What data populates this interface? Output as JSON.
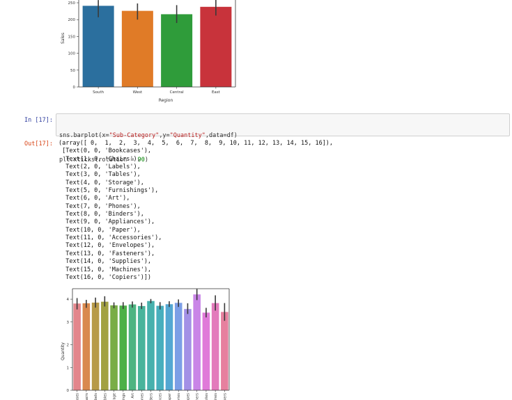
{
  "colors": {
    "prompt_in": "#303f9f",
    "prompt_out": "#d84315",
    "input_bg": "#f7f7f7",
    "string_token": "#ba2121",
    "number_token": "#008000"
  },
  "cells": {
    "cell17": {
      "in_prompt": "In [17]:",
      "code": {
        "line1_a": "sns.barplot(x=",
        "line1_s1": "\"Sub-Category\"",
        "line1_b": ",y=",
        "line1_s2": "\"Quantity\"",
        "line1_c": ",data=df)",
        "line2_a": "plt.xticks(rotation = ",
        "line2_n": "90",
        "line2_b": ")"
      },
      "out_prompt": "Out[17]:",
      "output_lines": [
        "(array([ 0,  1,  2,  3,  4,  5,  6,  7,  8,  9, 10, 11, 12, 13, 14, 15, 16]),",
        " [Text(0, 0, 'Bookcases'),",
        "  Text(1, 0, 'Chairs'),",
        "  Text(2, 0, 'Labels'),",
        "  Text(3, 0, 'Tables'),",
        "  Text(4, 0, 'Storage'),",
        "  Text(5, 0, 'Furnishings'),",
        "  Text(6, 0, 'Art'),",
        "  Text(7, 0, 'Phones'),",
        "  Text(8, 0, 'Binders'),",
        "  Text(9, 0, 'Appliances'),",
        "  Text(10, 0, 'Paper'),",
        "  Text(11, 0, 'Accessories'),",
        "  Text(12, 0, 'Envelopes'),",
        "  Text(13, 0, 'Fasteners'),",
        "  Text(14, 0, 'Supplies'),",
        "  Text(15, 0, 'Machines'),",
        "  Text(16, 0, 'Copiers')])"
      ]
    }
  },
  "chart_data": [
    {
      "type": "bar",
      "xlabel": "Region",
      "ylabel": "Sales",
      "ylim": [
        0,
        250
      ],
      "yticks": [
        0,
        50,
        100,
        150,
        200,
        250
      ],
      "categories": [
        "South",
        "West",
        "Central",
        "East"
      ],
      "values": [
        241,
        226,
        216,
        238
      ],
      "error_low": [
        207,
        200,
        190,
        212
      ],
      "error_high": [
        258,
        248,
        243,
        262
      ],
      "colors": [
        "#2b6f9e",
        "#e07b27",
        "#2f9c3a",
        "#c8333b"
      ],
      "grid": false
    },
    {
      "type": "bar",
      "xlabel": "",
      "ylabel": "Quantity",
      "ylim": [
        0,
        4.4
      ],
      "yticks": [
        0,
        1,
        2,
        3,
        4
      ],
      "categories": [
        "Bookcases",
        "Chairs",
        "Labels",
        "Tables",
        "Storage",
        "Furnishings",
        "Art",
        "Phones",
        "Binders",
        "Appliances",
        "Paper",
        "Accessories",
        "Envelopes",
        "Fasteners",
        "Supplies",
        "Machines",
        "Copiers"
      ],
      "values": [
        3.81,
        3.82,
        3.85,
        3.89,
        3.73,
        3.72,
        3.77,
        3.7,
        3.92,
        3.71,
        3.78,
        3.84,
        3.57,
        4.21,
        3.41,
        3.83,
        3.44
      ],
      "error_low": [
        3.55,
        3.62,
        3.63,
        3.68,
        3.6,
        3.57,
        3.63,
        3.57,
        3.82,
        3.55,
        3.66,
        3.66,
        3.35,
        3.96,
        3.2,
        3.5,
        3.05
      ],
      "error_high": [
        4.05,
        3.97,
        4.07,
        4.13,
        3.86,
        3.87,
        3.9,
        3.85,
        4.01,
        3.87,
        3.91,
        3.99,
        3.82,
        4.45,
        3.62,
        4.17,
        3.83
      ],
      "colors": [
        "#e3868c",
        "#d9894e",
        "#b79a48",
        "#a2a142",
        "#79ad47",
        "#4cb047",
        "#4db481",
        "#48b49b",
        "#47b1ad",
        "#48afbd",
        "#54a7d2",
        "#7c9ee6",
        "#a390e6",
        "#c985e7",
        "#e07ad9",
        "#e37bbc",
        "#e6809e"
      ],
      "grid": false
    }
  ]
}
